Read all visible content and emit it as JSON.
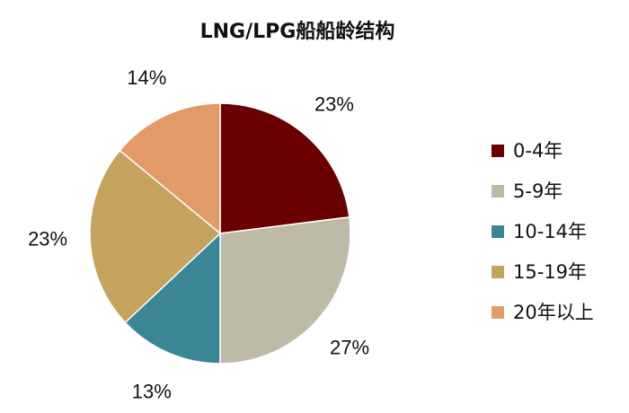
{
  "chart_data": {
    "type": "pie",
    "title": "LNG/LPG船船龄结构",
    "categories": [
      "0-4年",
      "5-9年",
      "10-14年",
      "15-19年",
      "20年以上"
    ],
    "values": [
      23,
      27,
      13,
      23,
      14
    ],
    "value_labels": [
      "23%",
      "27%",
      "13%",
      "23%",
      "14%"
    ],
    "colors": [
      "#6B0000",
      "#BDBAA8",
      "#3B8696",
      "#C3A35E",
      "#E29A66"
    ],
    "start_angle": "12 o'clock",
    "direction": "clockwise",
    "legend_position": "right"
  }
}
